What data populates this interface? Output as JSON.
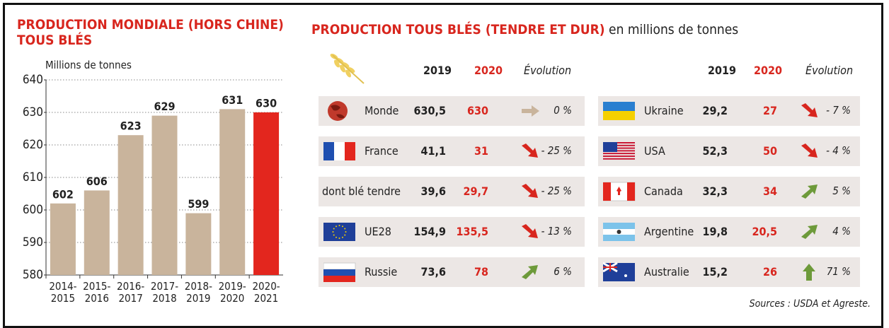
{
  "chart_data": {
    "type": "bar",
    "title": "PRODUCTION MONDIALE (HORS CHINE)\nTOUS BLÉS",
    "y_label": "Millions de tonnes",
    "categories": [
      "2014-\n2015",
      "2015-\n2016",
      "2016-\n2017",
      "2017-\n2018",
      "2018-\n2019",
      "2019-\n2020",
      "2020-\n2021"
    ],
    "values": [
      602,
      606,
      623,
      629,
      599,
      631,
      630
    ],
    "colors": [
      "#c9b49c",
      "#c9b49c",
      "#c9b49c",
      "#c9b49c",
      "#c9b49c",
      "#c9b49c",
      "#e3261e"
    ],
    "ylim": [
      580,
      640
    ],
    "yticks": [
      580,
      590,
      600,
      610,
      620,
      630,
      640
    ],
    "grid": true
  },
  "table": {
    "title": "PRODUCTION TOUS BLÉS (TENDRE ET DUR)",
    "subtitle": "en millions de tonnes",
    "headers": [
      "2019",
      "2020",
      "Évolution"
    ],
    "left": [
      {
        "name": "Monde",
        "v2019": "630,5",
        "v2020": "630",
        "evolution": "0 %",
        "trend": "flat"
      },
      {
        "name": "France",
        "v2019": "41,1",
        "v2020": "31",
        "evolution": "- 25 %",
        "trend": "down"
      },
      {
        "name": "dont blé tendre",
        "v2019": "39,6",
        "v2020": "29,7",
        "evolution": "- 25 %",
        "trend": "down"
      },
      {
        "name": "UE28",
        "v2019": "154,9",
        "v2020": "135,5",
        "evolution": "- 13 %",
        "trend": "down"
      },
      {
        "name": "Russie",
        "v2019": "73,6",
        "v2020": "78",
        "evolution": "6 %",
        "trend": "up"
      }
    ],
    "right": [
      {
        "name": "Ukraine",
        "v2019": "29,2",
        "v2020": "27",
        "evolution": "- 7 %",
        "trend": "down"
      },
      {
        "name": "USA",
        "v2019": "52,3",
        "v2020": "50",
        "evolution": "- 4 %",
        "trend": "down"
      },
      {
        "name": "Canada",
        "v2019": "32,3",
        "v2020": "34",
        "evolution": "5 %",
        "trend": "up"
      },
      {
        "name": "Argentine",
        "v2019": "19,8",
        "v2020": "20,5",
        "evolution": "4 %",
        "trend": "up"
      },
      {
        "name": "Australie",
        "v2019": "15,2",
        "v2020": "26",
        "evolution": "71 %",
        "trend": "up-strong"
      }
    ],
    "source": "Sources : USDA et Agreste."
  }
}
